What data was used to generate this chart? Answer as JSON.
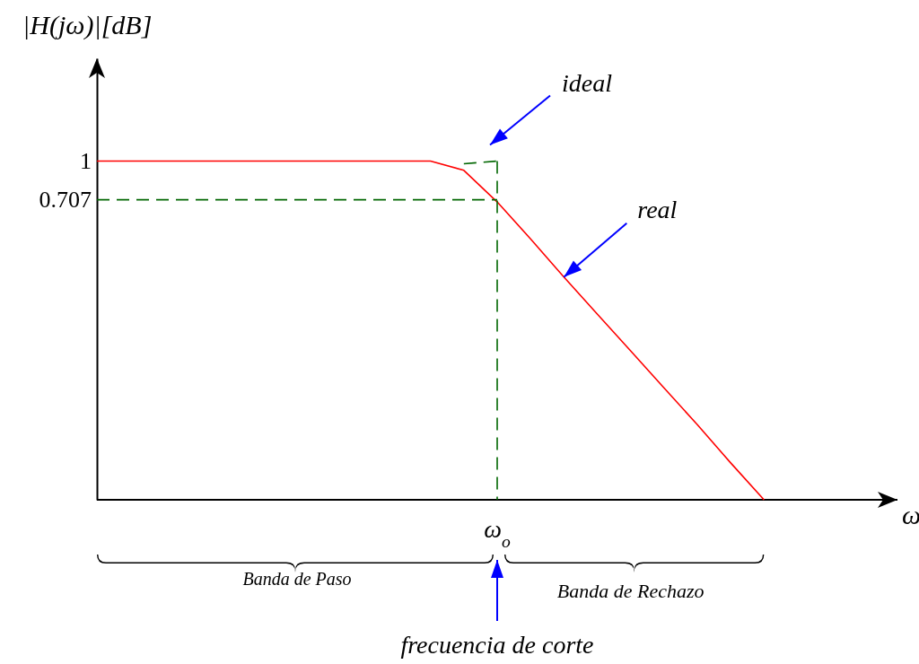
{
  "chart_data": {
    "type": "line",
    "ylabel": "|H(jω)|[dB]",
    "xlabel": "ω",
    "categories": [
      null,
      null,
      null,
      null,
      null,
      null,
      null,
      null,
      null,
      null,
      null,
      null,
      null,
      null,
      null,
      null,
      null,
      null,
      null,
      null,
      null,
      null,
      null,
      null
    ],
    "ylim": [
      -1.57,
      1.78
    ],
    "yticks": [
      1,
      0.707
    ],
    "series": [
      {
        "color": "#ff0000",
        "line_style": "solid",
        "values": [
          1,
          1,
          1,
          1,
          1,
          1,
          1,
          1,
          1,
          1,
          1,
          0.93,
          0.69,
          0.41,
          0.12,
          -0.16,
          -0.44,
          -0.72,
          -1.0,
          -1.29,
          -1.57,
          null,
          null,
          null
        ]
      },
      {
        "color": "#006600",
        "line_style": "dashed",
        "values": [
          null,
          null,
          null,
          null,
          null,
          null,
          null,
          null,
          null,
          null,
          null,
          0.98,
          1.0,
          null,
          null,
          null,
          null,
          null,
          null,
          null,
          null,
          null,
          null,
          null
        ]
      },
      {
        "color": "#006600",
        "line_style": "dashed",
        "values": [
          0.707,
          0.707,
          0.707,
          0.707,
          0.707,
          0.707,
          0.707,
          0.707,
          0.707,
          0.707,
          0.707,
          0.707,
          0.707,
          null,
          null,
          null,
          null,
          null,
          null,
          null,
          null,
          null,
          null,
          null
        ]
      }
    ],
    "annotations": [
      "ω$_{o}$",
      "ideal",
      "real",
      "Banda de Paso",
      "Banda de Rechazo",
      "frecuencia de corte"
    ]
  }
}
